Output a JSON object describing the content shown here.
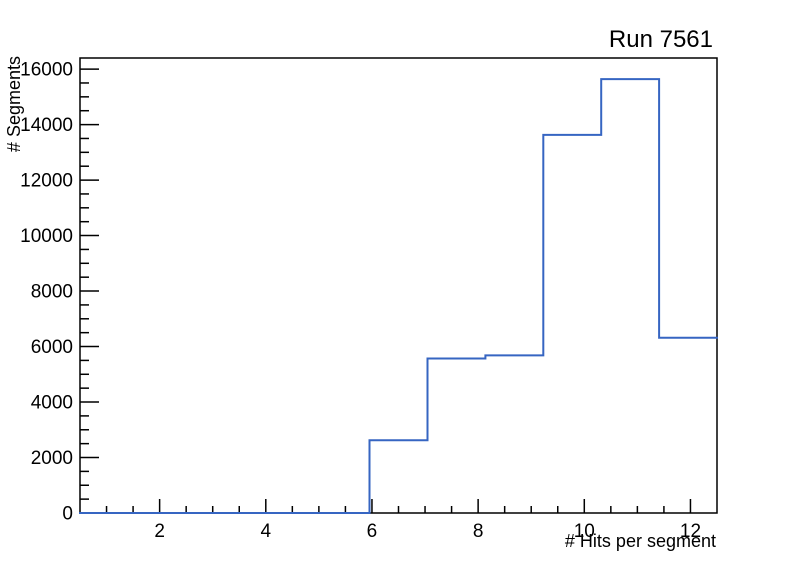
{
  "page": {
    "background": "#ffffff"
  },
  "chart_data": {
    "type": "line",
    "style": "step-histogram",
    "title": "Run 7561",
    "xlabel": "# Hits per segment",
    "ylabel": "# Segments",
    "xlim": [
      0.5,
      12.5
    ],
    "ylim": [
      0,
      16400
    ],
    "n_bins": 11,
    "bin_edges": [
      0.5,
      1.590909,
      2.681818,
      3.772727,
      4.863636,
      5.954545,
      7.045455,
      8.136364,
      9.227273,
      10.318182,
      11.409091,
      12.5
    ],
    "counts": [
      0,
      0,
      0,
      0,
      0,
      2620,
      5570,
      5680,
      13630,
      15640,
      6320
    ],
    "x_major_ticks": [
      2,
      4,
      6,
      8,
      10,
      12
    ],
    "x_minor_step": 0.5,
    "y_major_ticks": [
      0,
      2000,
      4000,
      6000,
      8000,
      10000,
      12000,
      14000,
      16000
    ],
    "y_minor_step": 500,
    "grid": false,
    "legend": null,
    "line_color": "#3665c2",
    "frame_color": "#000000",
    "tick_direction": "in"
  }
}
